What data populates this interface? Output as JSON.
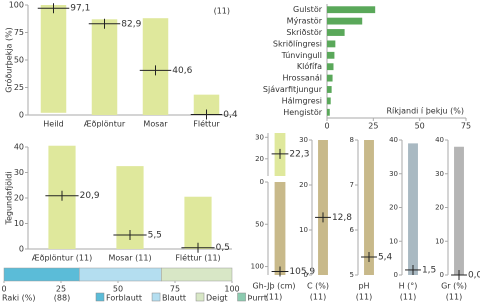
{
  "chart_data": [
    {
      "type": "range_bar",
      "ylabel": "Gróðurþekja (%)",
      "annotation": "(11)",
      "categories": [
        "Heild",
        "Æðplöntur",
        "Mosar",
        "Fléttur"
      ],
      "values": [
        97.1,
        82.9,
        40.6,
        0.4
      ],
      "value_labels": [
        "97,1",
        "82,9",
        "40,6",
        "0,4"
      ],
      "low": [
        2,
        0,
        0,
        0
      ],
      "high": [
        100,
        87,
        88,
        18.5
      ],
      "color": "#dfe89c",
      "ylim": [
        0,
        100
      ],
      "yticks": [
        0,
        25,
        50,
        75,
        100
      ]
    },
    {
      "type": "hbar",
      "xlabel": "Ríkjandi í þekju (%)",
      "categories": [
        "Gulstör",
        "Mýrastör",
        "Skriðstör",
        "Skriðlíngresi",
        "Túnvingull",
        "Klófífa",
        "Hrossanál",
        "Sjávarfitjungur",
        "Hálmgresi",
        "Hengistör"
      ],
      "values": [
        26,
        19,
        9.5,
        4.5,
        4,
        3.5,
        3,
        2.5,
        2,
        1.5
      ],
      "color": "#5aa85a",
      "xlim": [
        0,
        75
      ],
      "xticks": [
        0,
        25,
        50,
        75
      ]
    },
    {
      "type": "range_bar",
      "ylabel": "Tegundafjöldi",
      "categories": [
        "Æðplöntur (11)",
        "Mosar (11)",
        "Fléttur (11)"
      ],
      "values": [
        20.9,
        5.5,
        0.5
      ],
      "value_labels": [
        "20,9",
        "5,5",
        "0,5"
      ],
      "low": [
        0,
        0,
        0
      ],
      "high": [
        40.5,
        32.5,
        20.5
      ],
      "color": "#dfe89c",
      "ylim": [
        0,
        40
      ],
      "yticks": [
        0,
        10,
        20,
        30,
        40
      ]
    },
    {
      "type": "stacked_hbar",
      "xlabel": "Raki (%)",
      "annotation": "(88)",
      "series": [
        {
          "name": "Forblautt",
          "color": "#5bbcd8",
          "values": [
            33
          ]
        },
        {
          "name": "Blautt",
          "color": "#b4def0",
          "values": [
            36
          ]
        },
        {
          "name": "Deigt",
          "color": "#d8e7c6",
          "values": [
            31
          ]
        },
        {
          "name": "Þurrt",
          "color": "#8ccbb0",
          "values": [
            0
          ]
        }
      ],
      "xlim": [
        0,
        100
      ],
      "xticks": [
        0,
        25,
        50,
        75,
        100
      ]
    },
    {
      "type": "range_bar",
      "values": [
        22.3
      ],
      "value_labels": [
        "22,3"
      ],
      "low": [
        12
      ],
      "high": [
        32
      ],
      "color": "#dfe89c",
      "ylim": [
        12,
        32
      ],
      "yticks": [
        20,
        30
      ]
    },
    {
      "type": "range_bar",
      "title": "Gh-Jþ (cm)",
      "count": "(11)",
      "invert": true,
      "values": [
        105.9
      ],
      "value_labels": [
        "105,9"
      ],
      "low": [
        0
      ],
      "high": [
        110
      ],
      "color": "#c8b98a",
      "ylim": [
        0,
        110
      ],
      "yticks": [
        0,
        50,
        100
      ]
    },
    {
      "type": "range_bar",
      "title": "C (%)",
      "count": "(11)",
      "values": [
        12.8
      ],
      "value_labels": [
        "12,8"
      ],
      "low": [
        0
      ],
      "high": [
        30
      ],
      "color": "#c8b98a",
      "ylim": [
        0,
        30
      ],
      "yticks": [
        0,
        10,
        20,
        30
      ]
    },
    {
      "type": "range_bar",
      "title": "pH",
      "count": "(11)",
      "values": [
        5.4
      ],
      "value_labels": [
        "5,4"
      ],
      "low": [
        5
      ],
      "high": [
        8
      ],
      "color": "#c8b98a",
      "ylim": [
        5,
        8
      ],
      "yticks": [
        5,
        6,
        7,
        8
      ]
    },
    {
      "type": "range_bar",
      "title": "H (°)",
      "count": "(11)",
      "values": [
        1.5
      ],
      "value_labels": [
        "1,5"
      ],
      "low": [
        0
      ],
      "high": [
        39
      ],
      "color": "#a9b9c2",
      "ylim": [
        0,
        40
      ],
      "yticks": [
        0,
        10,
        20,
        30,
        40
      ]
    },
    {
      "type": "range_bar",
      "title": "Gr (%)",
      "count": "(11)",
      "values": [
        0.0
      ],
      "value_labels": [
        "0,0"
      ],
      "low": [
        0
      ],
      "high": [
        38
      ],
      "color": "#b5b5b5",
      "ylim": [
        0,
        40
      ],
      "yticks": [
        0,
        10,
        20,
        30,
        40
      ]
    }
  ]
}
